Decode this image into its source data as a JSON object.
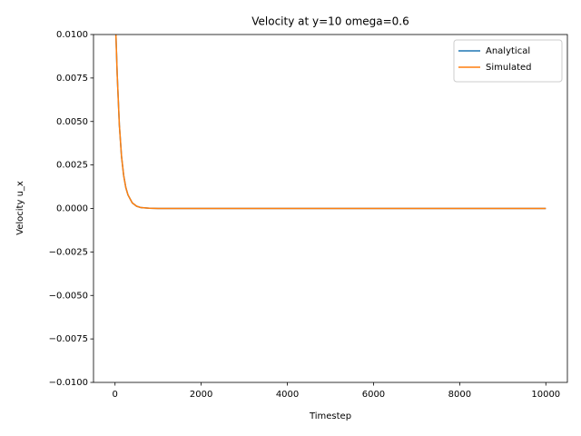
{
  "chart_data": {
    "type": "line",
    "title": "Velocity at y=10 omega=0.6",
    "x_label": "Timestep",
    "y_label": "Velocity u_x",
    "x": [
      0,
      20,
      50,
      100,
      150,
      200,
      250,
      300,
      400,
      500,
      600,
      800,
      1000,
      2000,
      4000,
      6000,
      8000,
      10000
    ],
    "series": [
      {
        "name": "Analytical",
        "color": "#1f77b4",
        "values": [
          0.012,
          0.01,
          0.0077,
          0.0048,
          0.003,
          0.0019,
          0.0012,
          0.00078,
          0.00032,
          0.00013,
          5e-05,
          1e-05,
          0,
          0,
          0,
          0,
          0,
          0
        ]
      },
      {
        "name": "Simulated",
        "color": "#ff7f0e",
        "values": [
          0.012,
          0.01,
          0.0077,
          0.0048,
          0.003,
          0.0019,
          0.0012,
          0.00078,
          0.00032,
          0.00013,
          5e-05,
          1e-05,
          0,
          0,
          0,
          0,
          0,
          0
        ]
      }
    ],
    "xlim": [
      -500,
      10500
    ],
    "ylim": [
      -0.01,
      0.01
    ],
    "xticks": [
      0,
      2000,
      4000,
      6000,
      8000,
      10000
    ],
    "yticks": [
      {
        "value": -0.01,
        "label": "−0.0100"
      },
      {
        "value": -0.0075,
        "label": "−0.0075"
      },
      {
        "value": -0.005,
        "label": "−0.0050"
      },
      {
        "value": -0.0025,
        "label": "−0.0025"
      },
      {
        "value": 0,
        "label": "0.0000"
      },
      {
        "value": 0.0025,
        "label": "0.0025"
      },
      {
        "value": 0.005,
        "label": "0.0050"
      },
      {
        "value": 0.0075,
        "label": "0.0075"
      },
      {
        "value": 0.01,
        "label": "0.0100"
      }
    ],
    "legend": "upper right",
    "grid": false
  }
}
